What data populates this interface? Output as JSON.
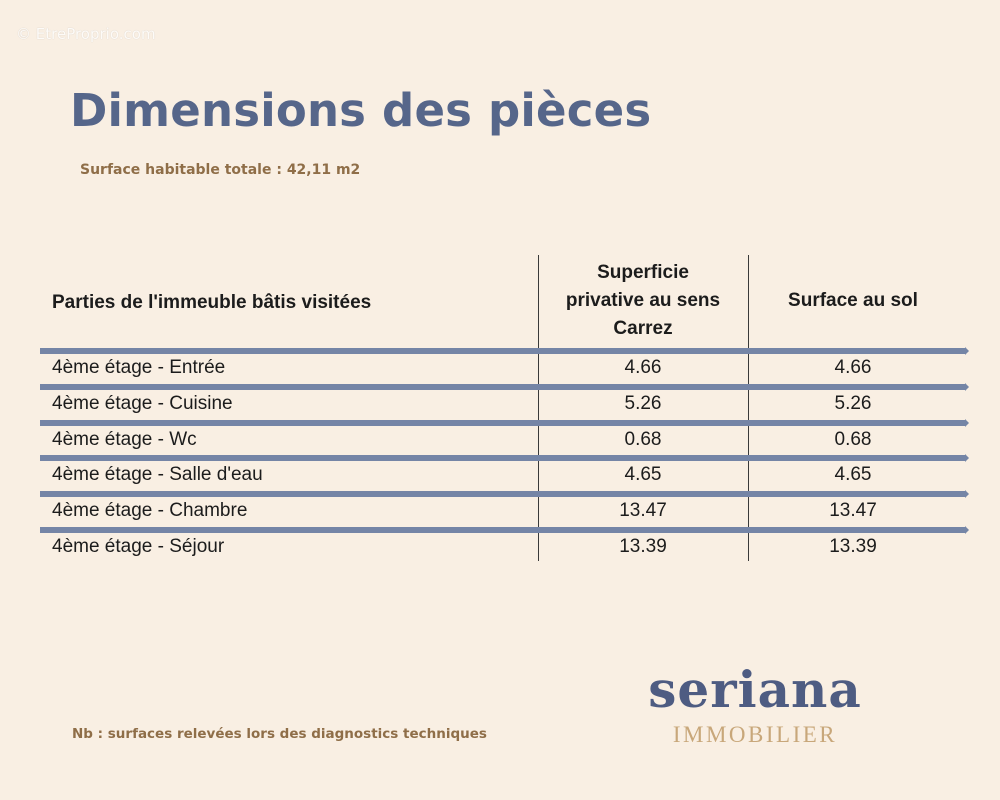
{
  "watermark": "© EtreProprio.com",
  "title": "Dimensions des pièces",
  "subtitle": "Surface habitable totale : 42,11 m2",
  "table": {
    "headers": {
      "col1": "Parties de l'immeuble bâtis visitées",
      "col2_line1": "Superficie",
      "col2_line2": "privative au sens",
      "col2_line3": "Carrez",
      "col3": "Surface au sol"
    },
    "rows": [
      {
        "label": "4ème étage - Entrée",
        "carrez": "4.66",
        "sol": "4.66"
      },
      {
        "label": "4ème étage - Cuisine",
        "carrez": "5.26",
        "sol": "5.26"
      },
      {
        "label": "4ème étage - Wc",
        "carrez": "0.68",
        "sol": "0.68"
      },
      {
        "label": "4ème étage - Salle d'eau",
        "carrez": "4.65",
        "sol": "4.65"
      },
      {
        "label": "4ème étage - Chambre",
        "carrez": "13.47",
        "sol": "13.47"
      },
      {
        "label": "4ème étage - Séjour",
        "carrez": "13.39",
        "sol": "13.39"
      }
    ]
  },
  "logo": {
    "name": "seriana",
    "tagline": "IMMOBILIER"
  },
  "note": "Nb : surfaces relevées lors des diagnostics techniques",
  "colors": {
    "background": "#f9efe3",
    "title": "#56668a",
    "accent_brown": "#8f6e48",
    "band": "#7585a6",
    "logo_gold": "#c8a77a"
  }
}
